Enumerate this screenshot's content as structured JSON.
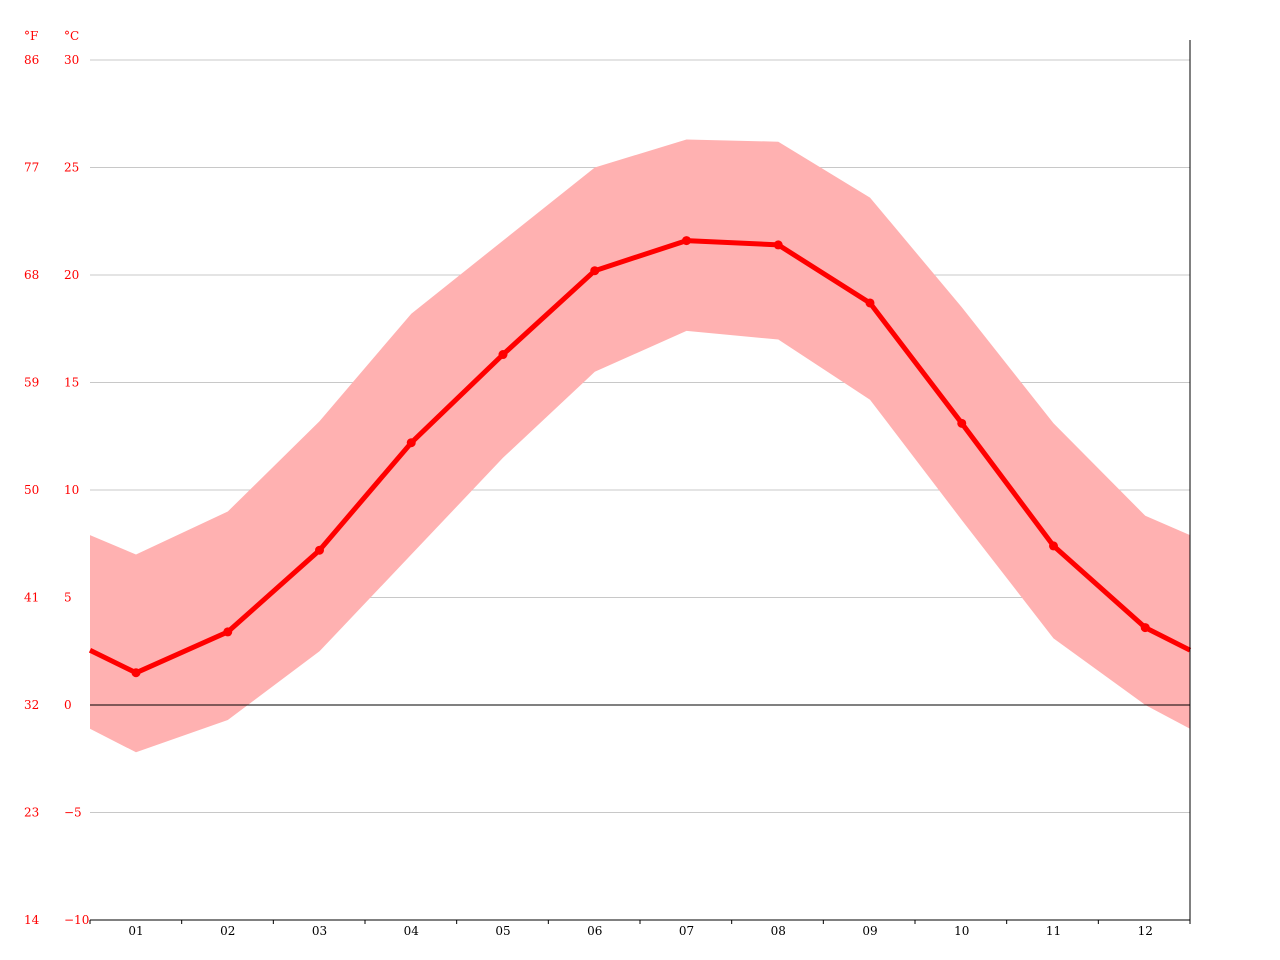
{
  "chart_data": {
    "type": "line",
    "title": "",
    "xlabel": "",
    "ylabel": "",
    "units": {
      "fahrenheit": "°F",
      "celsius": "°C"
    },
    "categories": [
      "01",
      "02",
      "03",
      "04",
      "05",
      "06",
      "07",
      "08",
      "09",
      "10",
      "11",
      "12"
    ],
    "ylim": [
      -10,
      30
    ],
    "yticks_celsius": [
      30,
      25,
      20,
      15,
      10,
      5,
      0,
      -5,
      -10
    ],
    "yticks_fahrenheit": [
      86,
      77,
      68,
      59,
      50,
      41,
      32,
      23,
      14
    ],
    "grid": true,
    "zero_line": true,
    "series": [
      {
        "role": "mean",
        "values": [
          1.5,
          3.4,
          7.2,
          12.2,
          16.3,
          20.2,
          21.6,
          21.4,
          18.7,
          13.1,
          7.4,
          3.6
        ]
      },
      {
        "role": "max",
        "values": [
          7.0,
          9.0,
          13.2,
          18.2,
          21.6,
          25.0,
          26.3,
          26.2,
          23.6,
          18.5,
          13.1,
          8.8
        ]
      },
      {
        "role": "min",
        "values": [
          -2.2,
          -0.7,
          2.5,
          7.0,
          11.5,
          15.5,
          17.4,
          17.0,
          14.2,
          8.6,
          3.1,
          0.0
        ]
      }
    ],
    "colors": {
      "mean_line": "#ff0000",
      "band": "#ffb1b1",
      "grid": "#c8c8c8",
      "axis": "#000000",
      "y_tick_text": "#ff0000",
      "x_tick_text": "#000000"
    }
  }
}
